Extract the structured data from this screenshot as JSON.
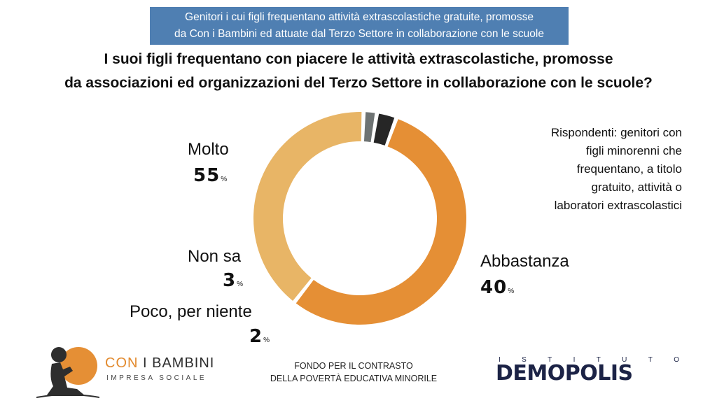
{
  "header": {
    "banner_line1": "Genitori i cui figli frequentano attività extrascolastiche gratuite, promosse",
    "banner_line2": "da Con i Bambini ed attuate dal Terzo Settore in collaborazione con le scuole"
  },
  "title": {
    "line1": "I suoi figli frequentano con piacere le attività extrascolastiche, promosse",
    "line2": "da associazioni ed organizzazioni del Terzo Settore in collaborazione con le scuole?"
  },
  "note": {
    "line1": "Rispondenti: genitori con",
    "line2": "figli minorenni che",
    "line3": "frequentano, a titolo",
    "line4": "gratuito, attività o",
    "line5": "laboratori extrascolastici"
  },
  "percent_sign": "%",
  "chart_data": {
    "type": "pie",
    "style": "donut",
    "categories": [
      "Molto",
      "Abbastanza",
      "Poco, per niente",
      "Non sa"
    ],
    "values": [
      55,
      40,
      2,
      3
    ],
    "value_labels": [
      "55",
      "40",
      "2",
      "3"
    ],
    "unit": "%",
    "colors": [
      "#e58f35",
      "#e8b566",
      "#6e7373",
      "#262626"
    ],
    "start_angle_deg": 20,
    "direction": "clockwise"
  },
  "footer": {
    "fund_line1": "FONDO PER IL CONTRASTO",
    "fund_line2": "DELLA POVERTÀ EDUCATIVA MINORILE",
    "cib_name_a": "CON ",
    "cib_name_b": "I BAMBINI",
    "cib_sub": "IMPRESA SOCIALE",
    "istituto_letters": [
      "I",
      "S",
      "T",
      "I",
      "T",
      "U",
      "T",
      "O"
    ],
    "demopolis": "DEMOPOLIS"
  }
}
